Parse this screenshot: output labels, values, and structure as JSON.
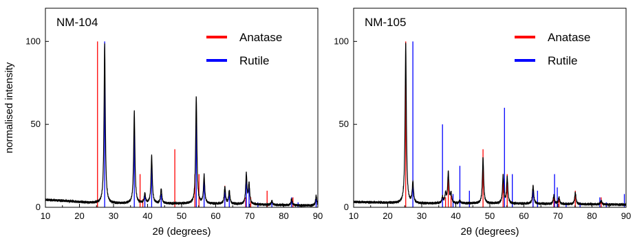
{
  "chart_data": [
    {
      "type": "line",
      "panel_label": "NM-104",
      "xlabel": "2θ (degrees)",
      "ylabel": "normalised intensity",
      "xlim": [
        10,
        90
      ],
      "ylim": [
        0,
        120
      ],
      "xticks": [
        10,
        20,
        30,
        40,
        50,
        60,
        70,
        80,
        90
      ],
      "yticks": [
        0,
        50,
        100
      ],
      "legend_position": "top-right",
      "legend": [
        {
          "name": "Anatase",
          "color": "#ff0000"
        },
        {
          "name": "Rutile",
          "color": "#0000ff"
        }
      ],
      "measured_pattern": {
        "color": "#000000",
        "baseline": [
          [
            10,
            4.5
          ],
          [
            15,
            4
          ],
          [
            20,
            3.2
          ],
          [
            25,
            2.5
          ],
          [
            30,
            2.3
          ],
          [
            40,
            2.3
          ],
          [
            50,
            2.2
          ],
          [
            60,
            2.1
          ],
          [
            70,
            1.8
          ],
          [
            80,
            1.3
          ],
          [
            90,
            1.0
          ]
        ],
        "peaks": [
          {
            "x": 27.4,
            "y": 99
          },
          {
            "x": 36.1,
            "y": 58
          },
          {
            "x": 39.2,
            "y": 8
          },
          {
            "x": 41.2,
            "y": 31
          },
          {
            "x": 44.0,
            "y": 11
          },
          {
            "x": 54.3,
            "y": 67
          },
          {
            "x": 56.6,
            "y": 19
          },
          {
            "x": 62.7,
            "y": 12
          },
          {
            "x": 64.0,
            "y": 10
          },
          {
            "x": 69.0,
            "y": 20
          },
          {
            "x": 69.8,
            "y": 14
          },
          {
            "x": 76.5,
            "y": 4
          },
          {
            "x": 82.3,
            "y": 5
          },
          {
            "x": 89.5,
            "y": 7
          }
        ]
      },
      "series": [
        {
          "name": "Anatase",
          "color": "#ff0000",
          "sticks": [
            [
              25.3,
              100
            ],
            [
              37.8,
              20
            ],
            [
              38.6,
              5
            ],
            [
              48.0,
              35
            ],
            [
              53.9,
              20
            ],
            [
              55.1,
              20
            ],
            [
              62.7,
              13
            ],
            [
              68.8,
              6
            ],
            [
              70.3,
              6
            ],
            [
              75.1,
              10
            ],
            [
              82.7,
              6
            ]
          ]
        },
        {
          "name": "Rutile",
          "color": "#0000ff",
          "sticks": [
            [
              27.4,
              100
            ],
            [
              36.1,
              50
            ],
            [
              39.2,
              8
            ],
            [
              41.2,
              25
            ],
            [
              44.0,
              8
            ],
            [
              54.3,
              60
            ],
            [
              56.6,
              20
            ],
            [
              62.7,
              10
            ],
            [
              64.0,
              10
            ],
            [
              69.0,
              20
            ],
            [
              69.8,
              12
            ],
            [
              72.4,
              3
            ],
            [
              76.5,
              3
            ],
            [
              82.3,
              6
            ],
            [
              84.2,
              3
            ],
            [
              89.5,
              5
            ]
          ]
        }
      ]
    },
    {
      "type": "line",
      "panel_label": "NM-105",
      "xlabel": "2θ (degrees)",
      "ylabel": "",
      "xlim": [
        10,
        90
      ],
      "ylim": [
        0,
        120
      ],
      "xticks": [
        10,
        20,
        30,
        40,
        50,
        60,
        70,
        80,
        90
      ],
      "yticks": [
        0,
        50,
        100
      ],
      "legend_position": "top-right",
      "legend": [
        {
          "name": "Anatase",
          "color": "#ff0000"
        },
        {
          "name": "Rutile",
          "color": "#0000ff"
        }
      ],
      "measured_pattern": {
        "color": "#000000",
        "baseline": [
          [
            10,
            3.2
          ],
          [
            15,
            3
          ],
          [
            20,
            2.7
          ],
          [
            25,
            2.4
          ],
          [
            30,
            2.3
          ],
          [
            40,
            2.4
          ],
          [
            50,
            2.3
          ],
          [
            60,
            2.2
          ],
          [
            70,
            2.0
          ],
          [
            80,
            1.8
          ],
          [
            90,
            1.6
          ]
        ],
        "peaks": [
          {
            "x": 25.3,
            "y": 99
          },
          {
            "x": 27.4,
            "y": 15
          },
          {
            "x": 36.1,
            "y": 6
          },
          {
            "x": 37.0,
            "y": 8
          },
          {
            "x": 37.8,
            "y": 21
          },
          {
            "x": 38.6,
            "y": 8
          },
          {
            "x": 41.2,
            "y": 4
          },
          {
            "x": 48.0,
            "y": 30
          },
          {
            "x": 53.9,
            "y": 19
          },
          {
            "x": 55.1,
            "y": 18
          },
          {
            "x": 62.7,
            "y": 13
          },
          {
            "x": 68.8,
            "y": 7
          },
          {
            "x": 70.3,
            "y": 6
          },
          {
            "x": 75.1,
            "y": 9
          },
          {
            "x": 82.7,
            "y": 4
          }
        ]
      },
      "series": [
        {
          "name": "Anatase",
          "color": "#ff0000",
          "sticks": [
            [
              25.3,
              100
            ],
            [
              37.0,
              6
            ],
            [
              37.8,
              20
            ],
            [
              38.6,
              7
            ],
            [
              48.0,
              35
            ],
            [
              53.9,
              20
            ],
            [
              55.1,
              20
            ],
            [
              62.7,
              13
            ],
            [
              68.8,
              6
            ],
            [
              70.3,
              6
            ],
            [
              75.1,
              10
            ],
            [
              82.7,
              6
            ]
          ]
        },
        {
          "name": "Rutile",
          "color": "#0000ff",
          "sticks": [
            [
              27.4,
              100
            ],
            [
              36.1,
              50
            ],
            [
              39.2,
              8
            ],
            [
              41.2,
              25
            ],
            [
              44.0,
              10
            ],
            [
              54.3,
              60
            ],
            [
              56.6,
              20
            ],
            [
              62.7,
              10
            ],
            [
              64.0,
              10
            ],
            [
              69.0,
              20
            ],
            [
              69.8,
              12
            ],
            [
              72.4,
              3
            ],
            [
              76.5,
              3
            ],
            [
              82.3,
              6
            ],
            [
              84.2,
              3
            ],
            [
              89.5,
              8
            ]
          ]
        }
      ]
    }
  ]
}
